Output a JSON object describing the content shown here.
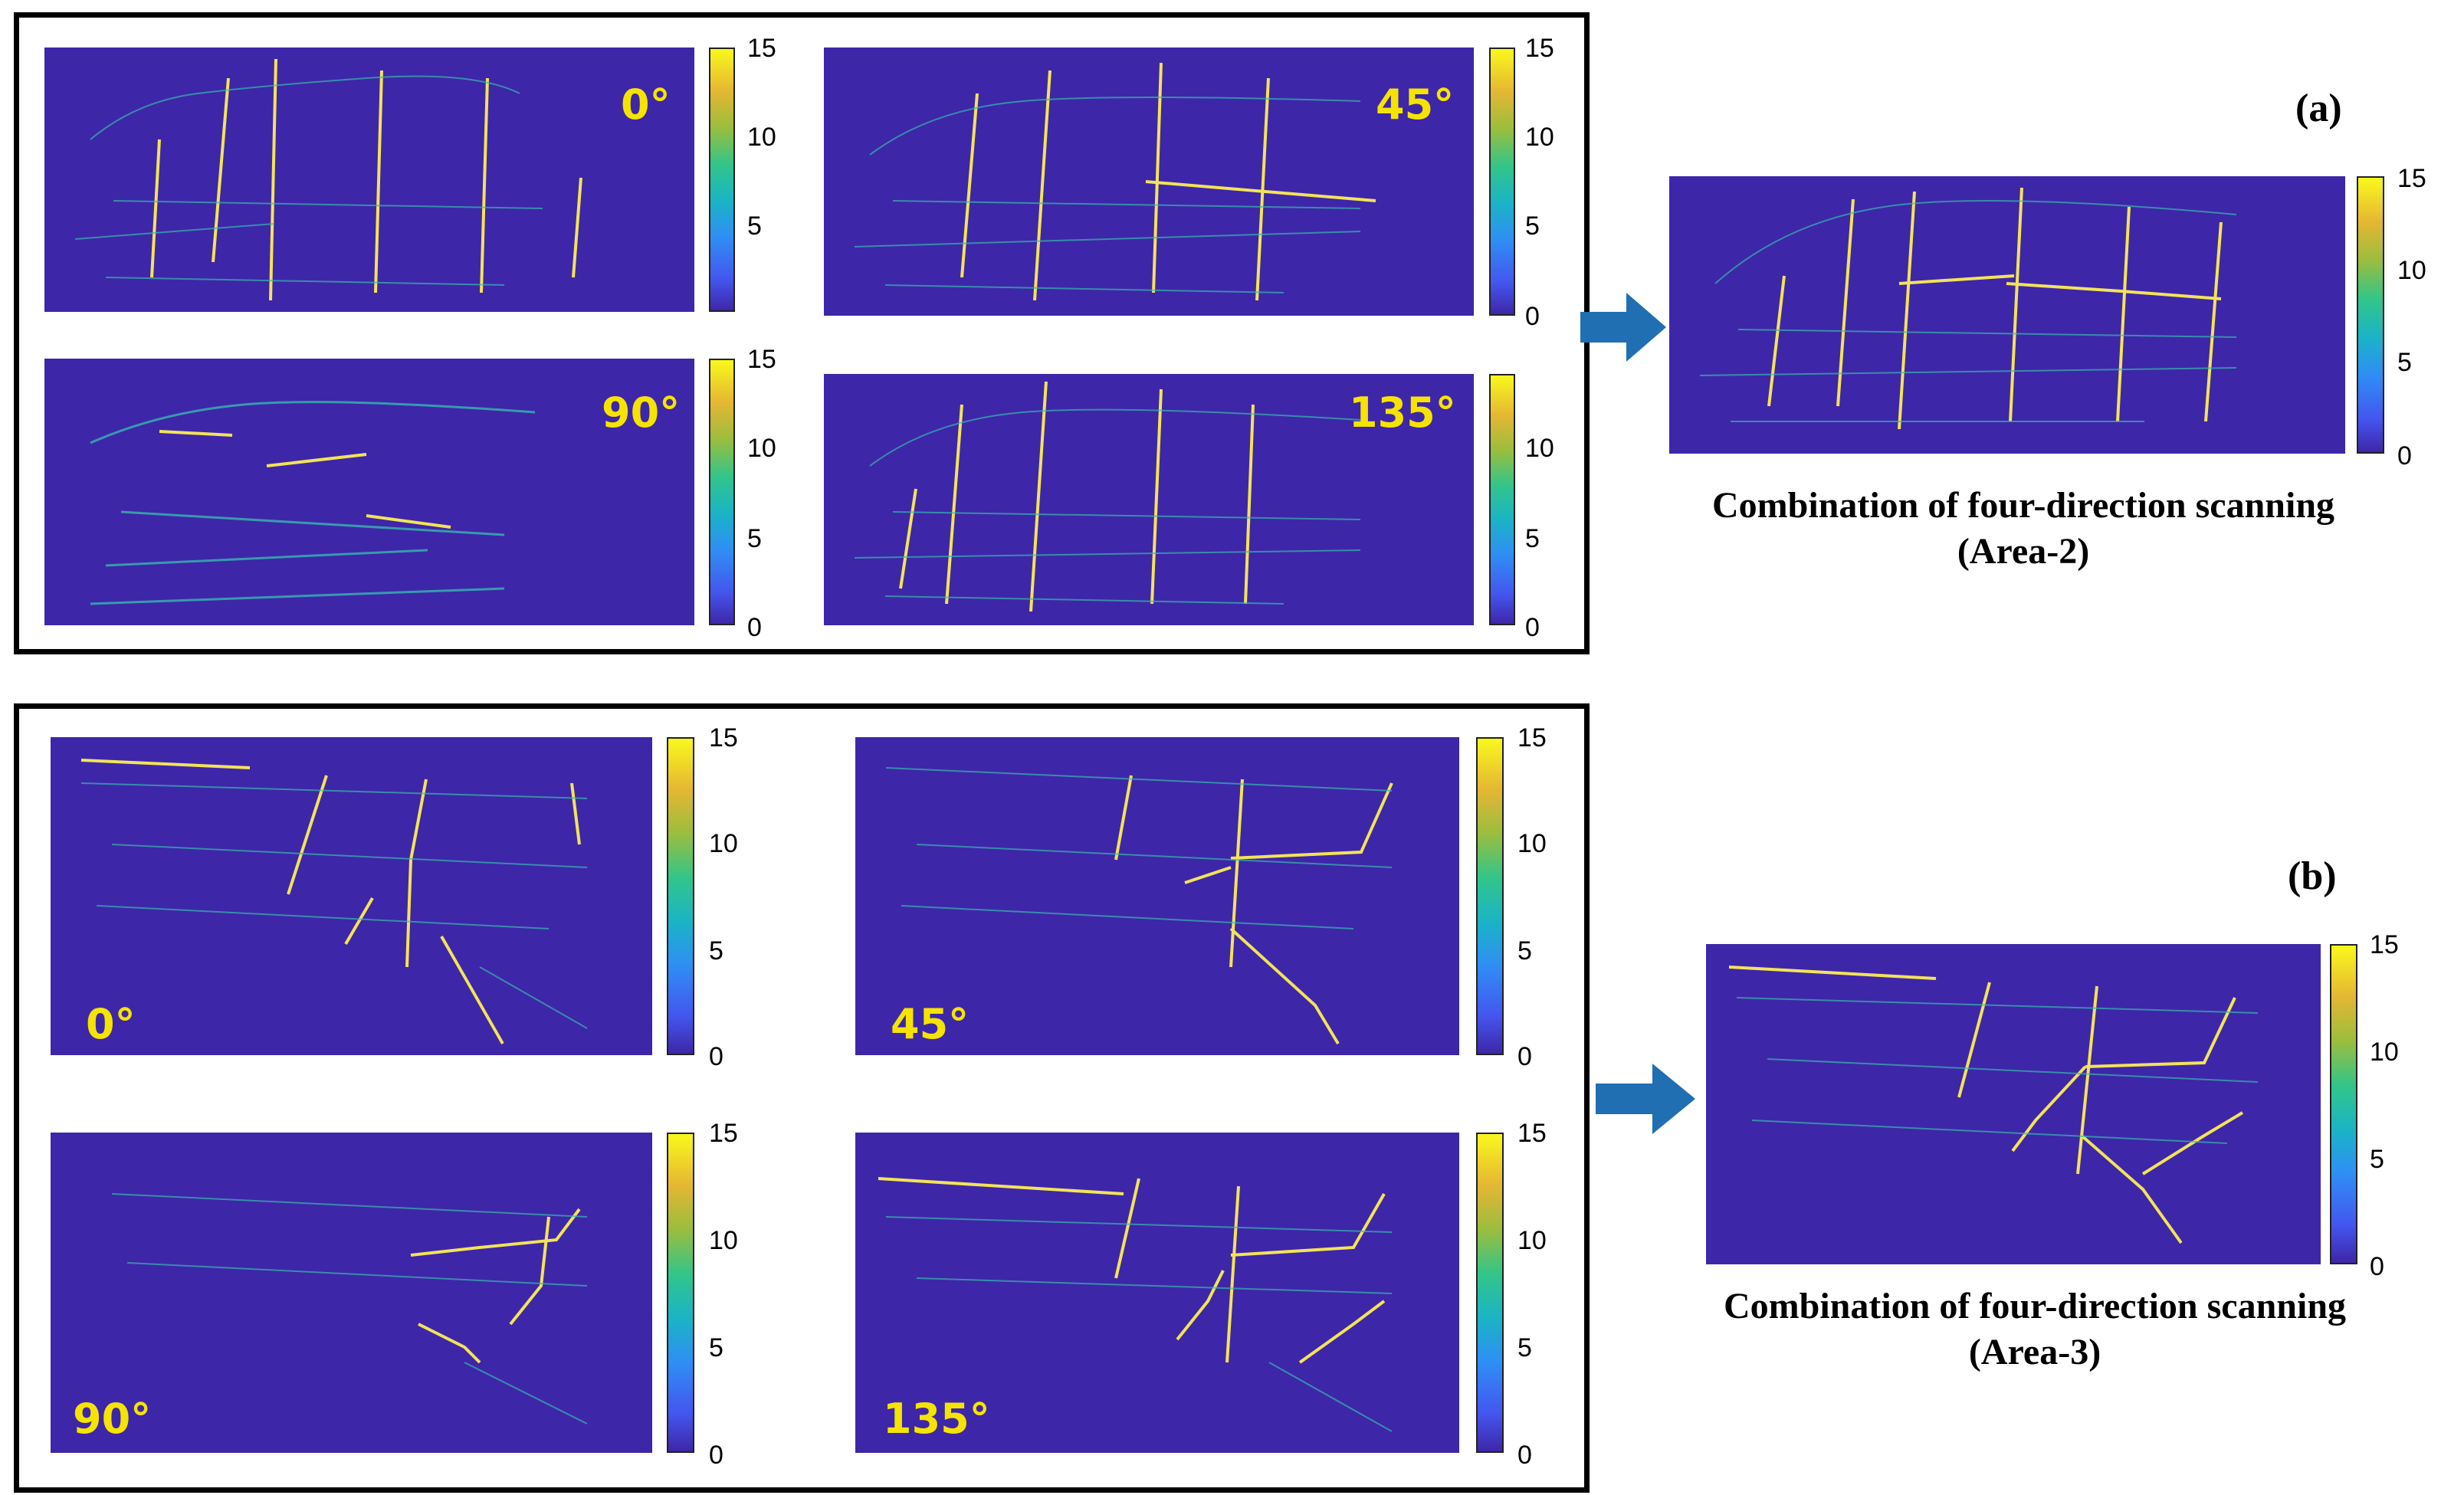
{
  "panel_a": {
    "tag": "(a)",
    "maps": [
      {
        "angle": "0°"
      },
      {
        "angle": "45°"
      },
      {
        "angle": "90°"
      },
      {
        "angle": "135°"
      }
    ],
    "caption_line1": "Combination of four-direction scanning",
    "caption_line2": "(Area-2)"
  },
  "panel_b": {
    "tag": "(b)",
    "maps": [
      {
        "angle": "0°"
      },
      {
        "angle": "45°"
      },
      {
        "angle": "90°"
      },
      {
        "angle": "135°"
      }
    ],
    "caption_line1": "Combination of four-direction scanning",
    "caption_line2": "(Area-3)"
  },
  "colorbar": {
    "ticks": [
      "15",
      "10",
      "5",
      "0"
    ],
    "ticks_partial": [
      "10",
      "5",
      "0"
    ],
    "colors": [
      "#3e26a8",
      "#2f8ef5",
      "#33c589",
      "#f9f81d"
    ]
  },
  "colors": {
    "map_background": "#3e26a8",
    "crack_color": "#f5e400",
    "arrow_color": "#1f6fb2"
  }
}
